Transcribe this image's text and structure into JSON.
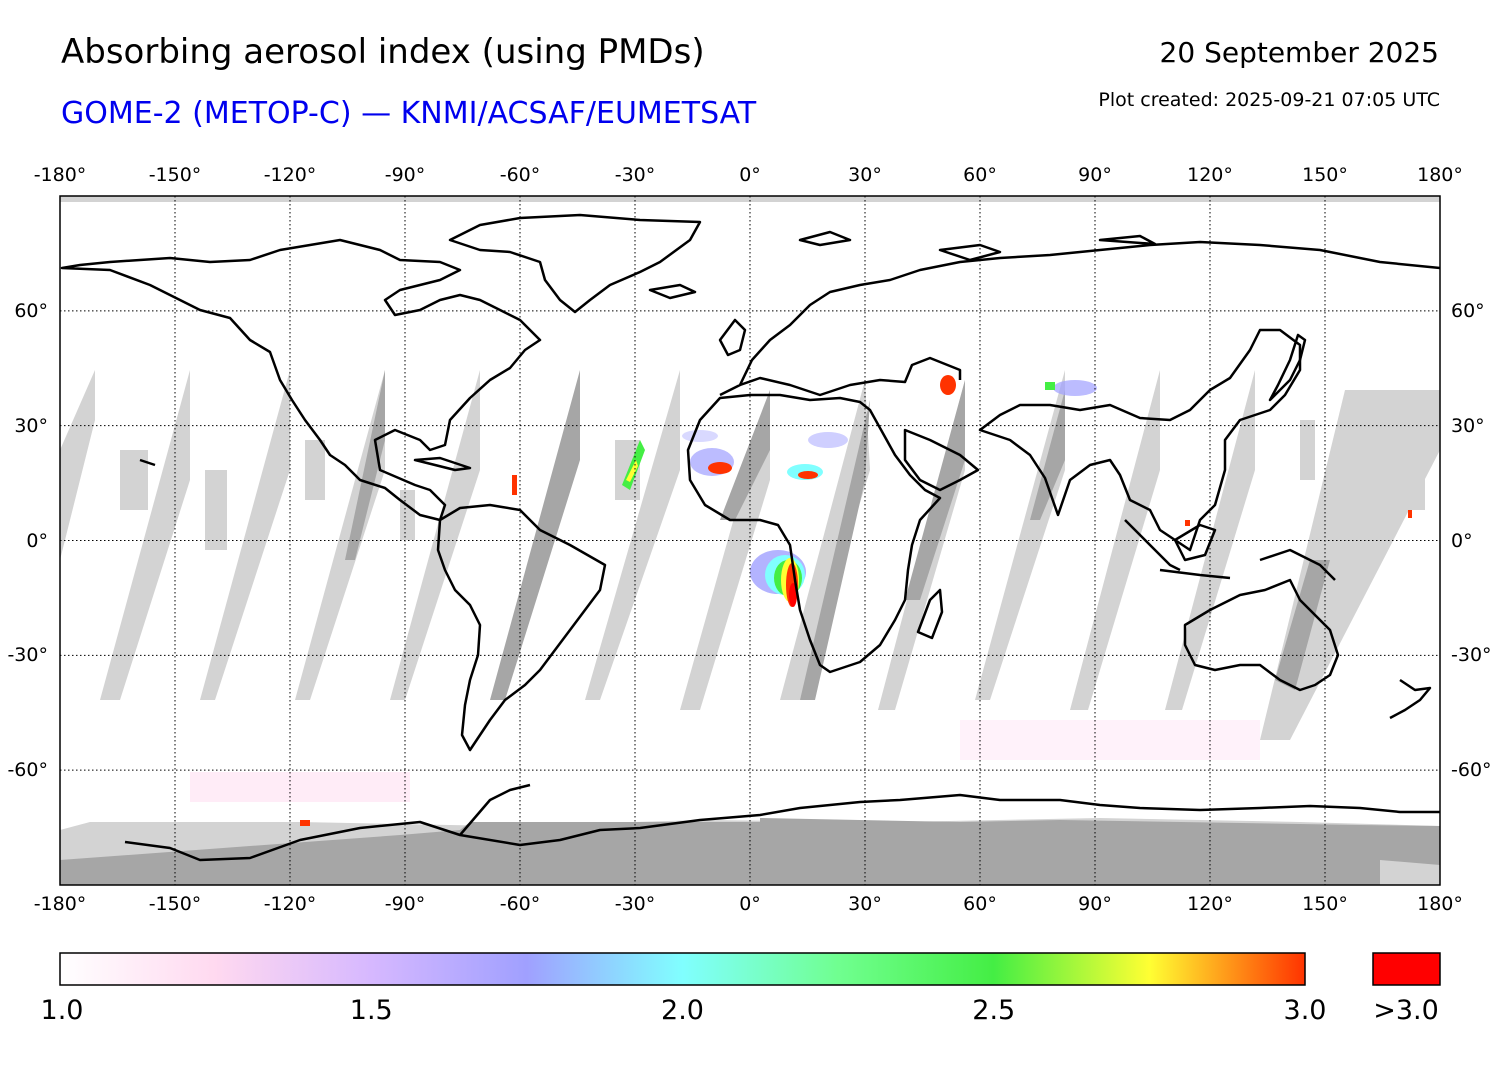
{
  "header": {
    "title": "Absorbing aerosol index (using PMDs)",
    "subtitle": "GOME-2 (METOP-C) — KNMI/ACSAF/EUMETSAT",
    "date": "20 September 2025",
    "created": "Plot created: 2025-09-21 07:05 UTC"
  },
  "map": {
    "projection": "equirectangular",
    "lon_range": [
      -180,
      180
    ],
    "lat_range": [
      -90,
      90
    ],
    "lon_ticks": [
      -180,
      -150,
      -120,
      -90,
      -60,
      -30,
      0,
      30,
      60,
      90,
      120,
      150,
      180
    ],
    "lon_tick_labels": [
      "-180°",
      "-150°",
      "-120°",
      "-90°",
      "-60°",
      "-30°",
      "0°",
      "30°",
      "60°",
      "90°",
      "120°",
      "150°",
      "180°"
    ],
    "lat_ticks": [
      60,
      30,
      0,
      -30,
      -60
    ],
    "lat_tick_labels": [
      "60°",
      "30°",
      "0°",
      "-30°",
      "-60°"
    ],
    "grid": "dotted",
    "colors": {
      "no_data_light": "#d3d3d3",
      "no_data_dark": "#a6a6a6",
      "coastline": "#000000"
    },
    "hotspots": [
      {
        "region": "southern-africa",
        "lon": 12,
        "lat": -14,
        "max_index": 3.0
      },
      {
        "region": "west-sahara",
        "lon": -8,
        "lat": 19,
        "max_index": 3.0
      },
      {
        "region": "central-sahara",
        "lon": 15,
        "lat": 17,
        "max_index": 2.8
      },
      {
        "region": "atlantic-dust-plume",
        "lon": -31,
        "lat": 22,
        "max_index": 2.6
      },
      {
        "region": "caspian",
        "lon": 52,
        "lat": 40,
        "max_index": 2.9
      }
    ]
  },
  "colorbar": {
    "min": 1.0,
    "max": 3.0,
    "tick_values": [
      1.0,
      1.5,
      2.0,
      2.5,
      3.0
    ],
    "tick_labels": [
      "1.0",
      "1.5",
      "2.0",
      "2.5",
      "3.0"
    ],
    "overflow_label": ">3.0",
    "overflow_color": "#ff0000",
    "stops": [
      {
        "value": 1.0,
        "color": "#ffffff"
      },
      {
        "value": 1.25,
        "color": "#ffd9f0"
      },
      {
        "value": 1.5,
        "color": "#d6b8ff"
      },
      {
        "value": 1.75,
        "color": "#a0a0ff"
      },
      {
        "value": 2.0,
        "color": "#80ffff"
      },
      {
        "value": 2.25,
        "color": "#70ff90"
      },
      {
        "value": 2.5,
        "color": "#44ee44"
      },
      {
        "value": 2.75,
        "color": "#ffff33"
      },
      {
        "value": 3.0,
        "color": "#ff3300"
      }
    ]
  }
}
